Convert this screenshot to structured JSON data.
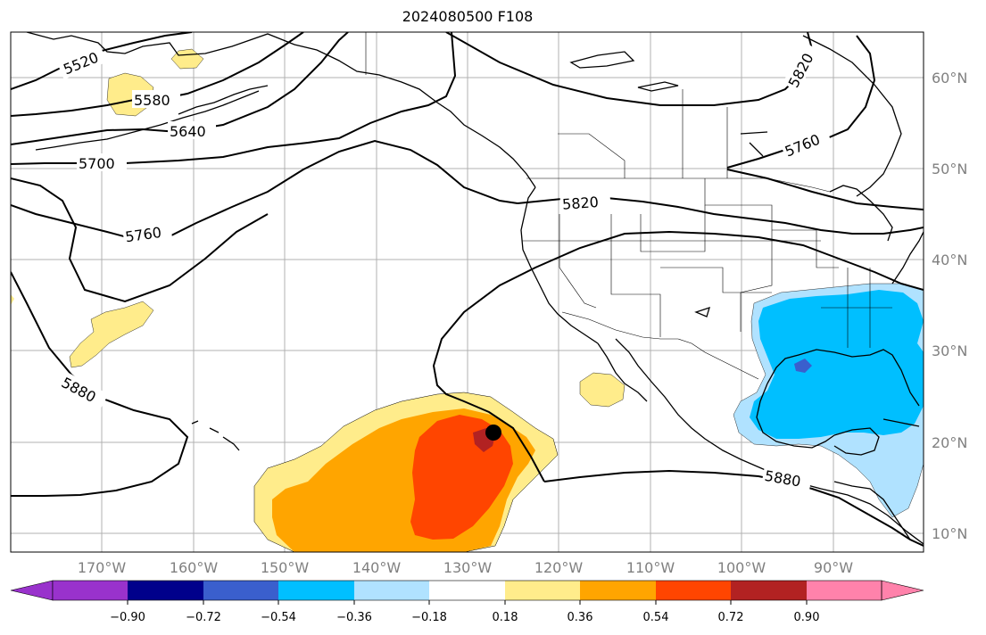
{
  "title": "2024080500 F108",
  "latitude_labels": [
    "60°N",
    "50°N",
    "40°N",
    "30°N",
    "20°N",
    "10°N"
  ],
  "longitude_labels": [
    "170°W",
    "160°W",
    "150°W",
    "140°W",
    "130°W",
    "120°W",
    "110°W",
    "100°W",
    "90°W"
  ],
  "contour_labels": [
    "5520",
    "5580",
    "5640",
    "5700",
    "5760",
    "5820",
    "5820",
    "5760",
    "5880",
    "5880"
  ],
  "colorbar": {
    "tick_labels": [
      "−0.90",
      "−0.72",
      "−0.54",
      "−0.36",
      "−0.18",
      "0.18",
      "0.36",
      "0.54",
      "0.72",
      "0.90"
    ],
    "colors": [
      "#9932cc",
      "#00008b",
      "#3a5fcd",
      "#00bfff",
      "#b0e2ff",
      "#ffffff",
      "#ffec8b",
      "#ffa500",
      "#ff4500",
      "#b22222",
      "#ff82ab"
    ]
  },
  "colors": {
    "land_outline": "#000000",
    "grid": "#b0b0b0",
    "tick_label": "#808080",
    "contour": "#000000"
  }
}
